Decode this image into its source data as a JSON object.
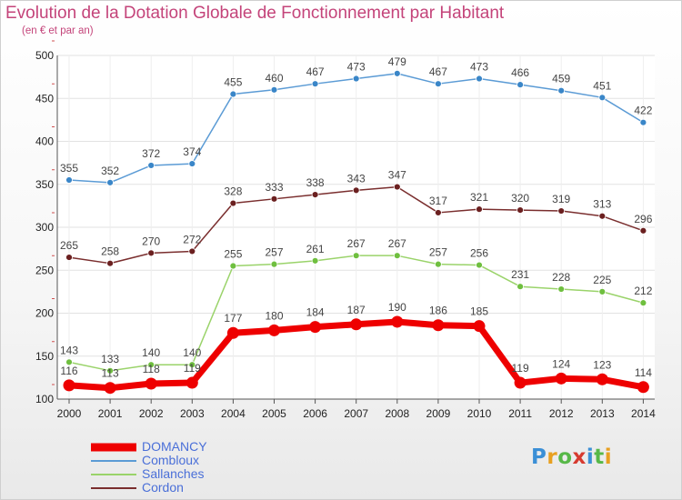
{
  "title": "Evolution de la Dotation Globale de Fonctionnement par Habitant",
  "subtitle": "(en € et par an)",
  "logo": "Proxiti",
  "chart_data": {
    "type": "line",
    "title": "Evolution de la Dotation Globale de Fonctionnement par Habitant",
    "subtitle": "(en € et par an)",
    "x": [
      "2000",
      "2001",
      "2002",
      "2003",
      "2004",
      "2005",
      "2006",
      "2007",
      "2008",
      "2009",
      "2010",
      "2011",
      "2012",
      "2013",
      "2014"
    ],
    "ylim": [
      100,
      500
    ],
    "yticks": [
      100,
      150,
      200,
      250,
      300,
      350,
      400,
      450,
      500
    ],
    "grid": true,
    "legend_position": "bottom-left",
    "series": [
      {
        "name": "Combloux",
        "color": "#5b9bd5",
        "marker": "#3a86c8",
        "width": 1.5,
        "values": [
          355,
          352,
          372,
          374,
          455,
          460,
          467,
          473,
          479,
          467,
          473,
          466,
          459,
          451,
          422
        ]
      },
      {
        "name": "Cordon",
        "color": "#7a2e2e",
        "marker": "#6b2020",
        "width": 1.5,
        "values": [
          265,
          258,
          270,
          272,
          328,
          333,
          338,
          343,
          347,
          317,
          321,
          320,
          319,
          313,
          296
        ]
      },
      {
        "name": "Sallanches",
        "color": "#9ad36a",
        "marker": "#6fbf3f",
        "width": 1.5,
        "values": [
          143,
          133,
          140,
          140,
          255,
          257,
          261,
          267,
          267,
          257,
          256,
          231,
          228,
          225,
          212
        ]
      },
      {
        "name": "DOMANCY",
        "color": "#ee0000",
        "marker": "#ee0000",
        "width": 7,
        "values": [
          116,
          113,
          118,
          119,
          177,
          180,
          184,
          187,
          190,
          186,
          185,
          119,
          124,
          123,
          114
        ]
      }
    ],
    "legend_order": [
      "DOMANCY",
      "Combloux",
      "Sallanches",
      "Cordon"
    ]
  }
}
